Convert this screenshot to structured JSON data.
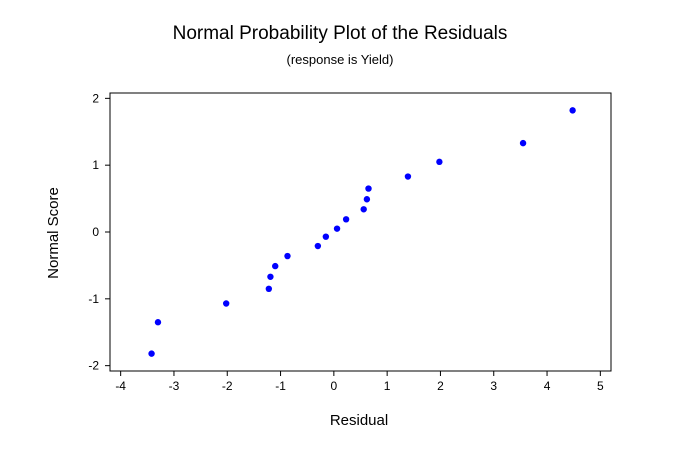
{
  "chart_data": {
    "type": "scatter",
    "title": "Normal Probability Plot of the Residuals",
    "subtitle": "(response is Yield)",
    "xlabel": "Residual",
    "ylabel": "Normal Score",
    "xlim": [
      -4.2,
      5.2
    ],
    "ylim": [
      -2.08,
      2.08
    ],
    "xticks": [
      "-4",
      "-3",
      "-2",
      "-1",
      "0",
      "1",
      "2",
      "3",
      "4",
      "5"
    ],
    "yticks": [
      "-2",
      "-1",
      "0",
      "1",
      "2"
    ],
    "grid": false,
    "marker_color": "#0000ff",
    "points": [
      {
        "x": -3.42,
        "y": -1.82
      },
      {
        "x": -3.3,
        "y": -1.35
      },
      {
        "x": -2.02,
        "y": -1.07
      },
      {
        "x": -1.22,
        "y": -0.85
      },
      {
        "x": -1.19,
        "y": -0.67
      },
      {
        "x": -1.1,
        "y": -0.51
      },
      {
        "x": -0.87,
        "y": -0.36
      },
      {
        "x": -0.3,
        "y": -0.21
      },
      {
        "x": -0.15,
        "y": -0.07
      },
      {
        "x": 0.06,
        "y": 0.05
      },
      {
        "x": 0.23,
        "y": 0.19
      },
      {
        "x": 0.56,
        "y": 0.34
      },
      {
        "x": 0.62,
        "y": 0.49
      },
      {
        "x": 0.65,
        "y": 0.65
      },
      {
        "x": 1.39,
        "y": 0.83
      },
      {
        "x": 1.98,
        "y": 1.05
      },
      {
        "x": 3.55,
        "y": 1.33
      },
      {
        "x": 4.48,
        "y": 1.82
      }
    ]
  }
}
